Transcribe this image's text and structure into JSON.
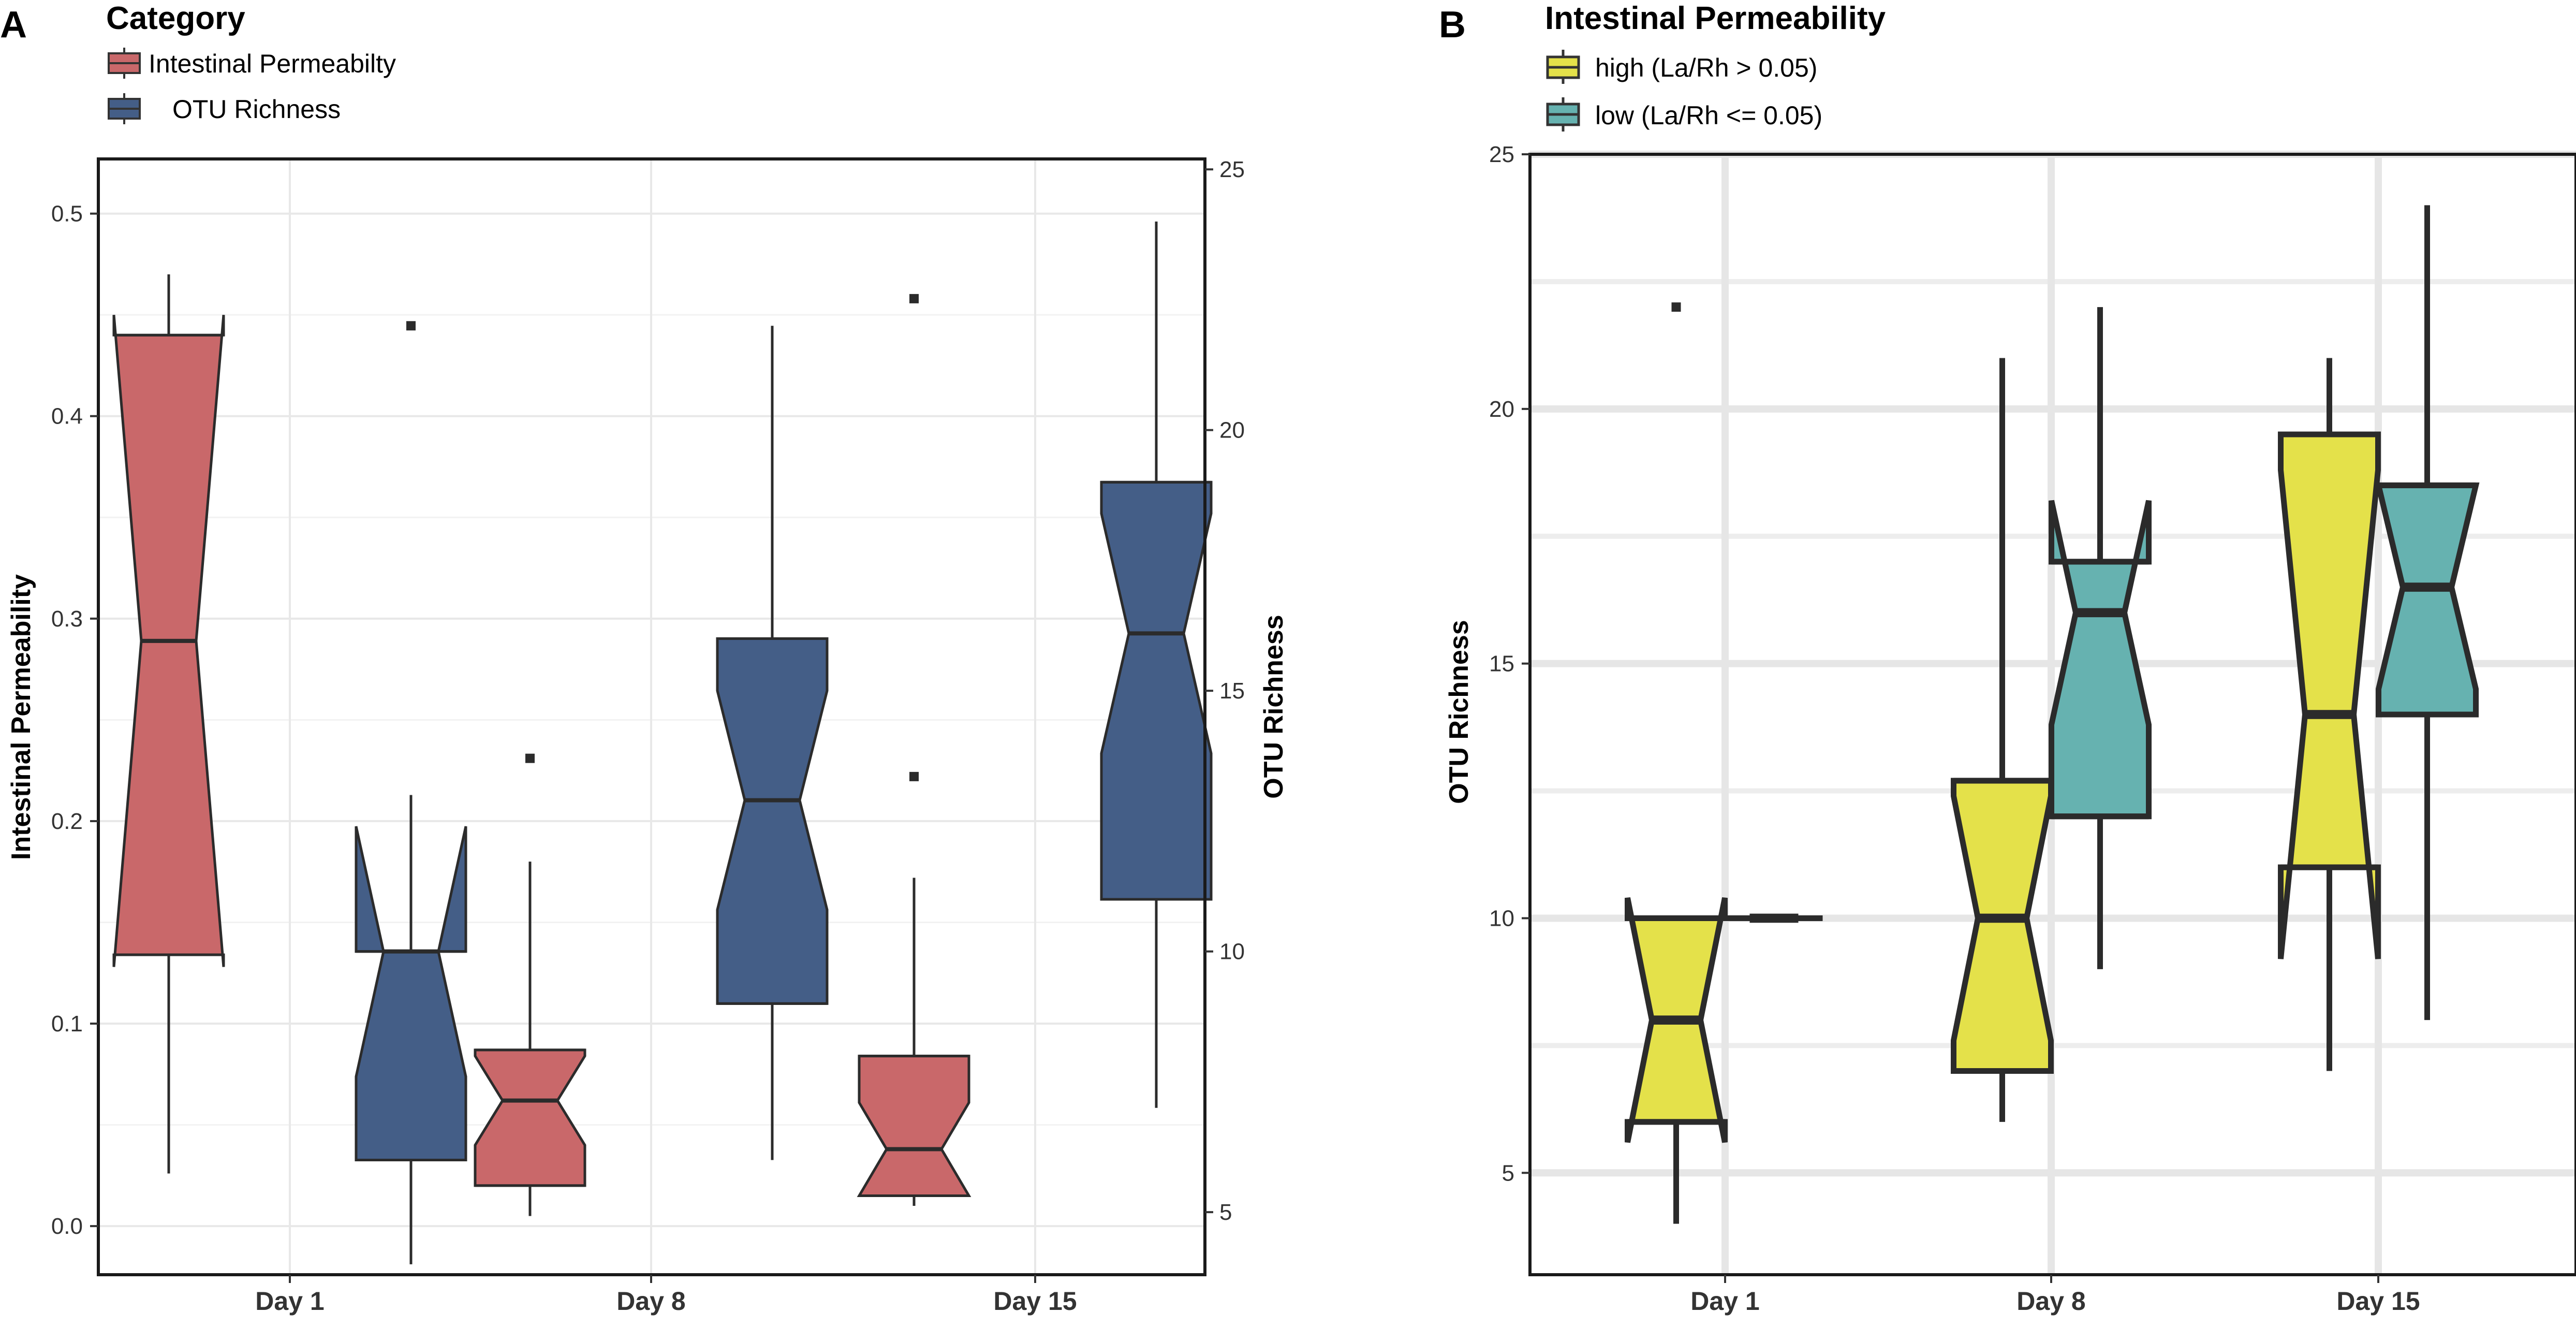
{
  "chart_data": [
    {
      "panel": "A",
      "type": "box",
      "legend": {
        "title": "Category",
        "entries": [
          {
            "label": "Intestinal Permeabilty",
            "color": "#c9686a"
          },
          {
            "label": "OTU Richness",
            "color": "#445e87"
          }
        ]
      },
      "categories": [
        "Day 1",
        "Day 8",
        "Day 15"
      ],
      "ylabel_left": "Intestinal Permeability",
      "ylabel_right": "OTU Richness",
      "ylim_left": [
        -0.024,
        0.527
      ],
      "ylim_right": [
        3.8,
        25.2
      ],
      "yticks_left": [
        "0.0",
        "0.1",
        "0.2",
        "0.3",
        "0.4",
        "0.5"
      ],
      "yticks_right": [
        "5",
        "10",
        "15",
        "20",
        "25"
      ],
      "series": [
        {
          "name": "Intestinal Permeabilty",
          "color": "#c9686a",
          "axis": "left",
          "offset": -0.25,
          "boxes": [
            {
              "category": "Day 1",
              "whisker_low": 0.026,
              "q1": 0.134,
              "median": 0.289,
              "q3": 0.44,
              "whisker_high": 0.47,
              "notch_low": 0.128,
              "notch_high": 0.45,
              "outliers": []
            },
            {
              "category": "Day 8",
              "whisker_low": 0.005,
              "q1": 0.02,
              "median": 0.062,
              "q3": 0.087,
              "whisker_high": 0.18,
              "notch_low": 0.04,
              "notch_high": 0.084,
              "outliers": [
                0.231
              ]
            },
            {
              "category": "Day 15",
              "whisker_low": 0.01,
              "q1": 0.015,
              "median": 0.038,
              "q3": 0.084,
              "whisker_high": 0.172,
              "notch_low": 0.015,
              "notch_high": 0.061,
              "outliers": [
                0.222,
                0.458
              ]
            }
          ]
        },
        {
          "name": "OTU Richness",
          "color": "#445e87",
          "axis": "right",
          "offset": 0.25,
          "boxes": [
            {
              "category": "Day 1",
              "whisker_low": 4.0,
              "q1": 6.0,
              "median": 10.0,
              "q3": 10.0,
              "whisker_high": 13.0,
              "notch_low": 7.6,
              "notch_high": 12.4,
              "outliers": [
                22.0
              ]
            },
            {
              "category": "Day 8",
              "whisker_low": 6.0,
              "q1": 9.0,
              "median": 12.9,
              "q3": 16.0,
              "whisker_high": 22.0,
              "notch_low": 10.8,
              "notch_high": 15.0,
              "outliers": []
            },
            {
              "category": "Day 15",
              "whisker_low": 7.0,
              "q1": 11.0,
              "median": 16.1,
              "q3": 19.0,
              "whisker_high": 24.0,
              "notch_low": 13.8,
              "notch_high": 18.4,
              "outliers": []
            }
          ]
        }
      ]
    },
    {
      "panel": "B",
      "type": "box",
      "legend": {
        "title": "Intestinal Permeability",
        "entries": [
          {
            "label": "high  (La/Rh > 0.05)",
            "color": "#e4e14a"
          },
          {
            "label": "low  (La/Rh <= 0.05)",
            "color": "#66b2b0"
          }
        ]
      },
      "categories": [
        "Day 1",
        "Day 8",
        "Day 15"
      ],
      "ylabel": "OTU Richness",
      "ylim": [
        3.0,
        25.0
      ],
      "yticks": [
        "5",
        "10",
        "15",
        "20",
        "25"
      ],
      "series": [
        {
          "name": "high  (La/Rh > 0.05)",
          "color": "#e4e14a",
          "offset": -0.15,
          "boxes": [
            {
              "category": "Day 1",
              "whisker_low": 4.0,
              "q1": 6.0,
              "median": 8.0,
              "q3": 10.0,
              "whisker_high": 10.0,
              "notch_low": 5.6,
              "notch_high": 10.4,
              "outliers": [
                22.0
              ]
            },
            {
              "category": "Day 8",
              "whisker_low": 6.0,
              "q1": 7.0,
              "median": 10.0,
              "q3": 12.7,
              "whisker_high": 21.0,
              "notch_low": 7.6,
              "notch_high": 12.4,
              "outliers": []
            },
            {
              "category": "Day 15",
              "whisker_low": 7.0,
              "q1": 11.0,
              "median": 14.0,
              "q3": 19.5,
              "whisker_high": 21.0,
              "notch_low": 9.2,
              "notch_high": 18.8,
              "outliers": []
            }
          ]
        },
        {
          "name": "low  (La/Rh <= 0.05)",
          "color": "#66b2b0",
          "offset": 0.15,
          "boxes": [
            {
              "category": "Day 1",
              "whisker_low": 10.0,
              "q1": 10.0,
              "median": 10.0,
              "q3": 10.0,
              "whisker_high": 10.0,
              "notch_low": 10.0,
              "notch_high": 10.0,
              "outliers": []
            },
            {
              "category": "Day 8",
              "whisker_low": 9.0,
              "q1": 12.0,
              "median": 16.0,
              "q3": 17.0,
              "whisker_high": 22.0,
              "notch_low": 13.8,
              "notch_high": 18.2,
              "outliers": []
            },
            {
              "category": "Day 15",
              "whisker_low": 8.0,
              "q1": 14.0,
              "median": 16.5,
              "q3": 18.5,
              "whisker_high": 24.0,
              "notch_low": 14.5,
              "notch_high": 18.5,
              "outliers": []
            }
          ]
        }
      ]
    }
  ]
}
